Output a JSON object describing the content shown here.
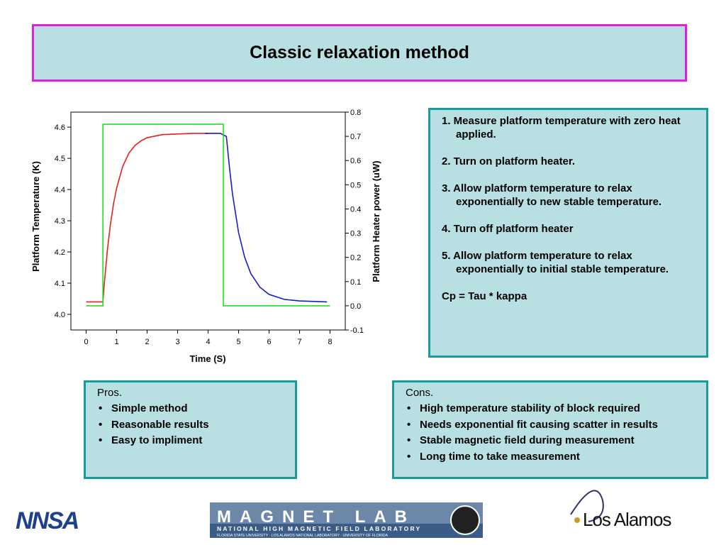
{
  "header": {
    "title": "Classic relaxation method"
  },
  "chart_data": {
    "type": "line",
    "x_label": "Time (S)",
    "y_label": "Platform Temperature (K)",
    "y2_label": "Platform Heater power (uW)",
    "xlim": [
      -0.5,
      8.5
    ],
    "xticks": [
      0,
      1,
      2,
      3,
      4,
      5,
      6,
      7,
      8
    ],
    "ylim": [
      3.95,
      4.648
    ],
    "yticks": [
      {
        "value": 4,
        "label": "4.0"
      },
      4.1,
      4.2,
      4.3,
      4.4,
      4.5,
      4.6
    ],
    "y2lim": [
      -0.1,
      0.8
    ],
    "y2ticks": [
      -0.1,
      {
        "value": 0,
        "label": "0.0"
      },
      0.1,
      0.2,
      0.3,
      0.4,
      0.5,
      0.6,
      0.7,
      0.8
    ],
    "series": [
      {
        "color": "#e02020",
        "x": [
          0,
          0.5,
          0.55,
          0.6,
          0.7,
          0.8,
          0.9,
          1.0,
          1.2,
          1.4,
          1.6,
          1.8,
          2.0,
          2.5,
          3.0,
          3.5,
          4.0
        ],
        "values": [
          4.04,
          4.04,
          4.04,
          4.103,
          4.209,
          4.291,
          4.355,
          4.405,
          4.474,
          4.516,
          4.541,
          4.556,
          4.566,
          4.576,
          4.578,
          4.58,
          4.58
        ]
      },
      {
        "color": "#1a1acc",
        "x": [
          3.9,
          4.4,
          4.6,
          4.7,
          4.8,
          5.0,
          5.2,
          5.4,
          5.7,
          6.0,
          6.5,
          7.0,
          7.9
        ],
        "values": [
          4.58,
          4.58,
          4.57,
          4.472,
          4.386,
          4.262,
          4.183,
          4.131,
          4.087,
          4.064,
          4.048,
          4.043,
          4.04
        ]
      },
      {
        "color": "#20e020",
        "axis": "y2",
        "x": [
          0,
          0.55,
          0.55,
          4.5,
          4.5,
          8
        ],
        "values": [
          0,
          0,
          0.75,
          0.75,
          0,
          0
        ]
      }
    ]
  },
  "steps": [
    "1. Measure platform temperature with zero heat applied.",
    "2. Turn on platform heater.",
    "3. Allow platform temperature to relax exponentially to new stable temperature.",
    "4. Turn off  platform heater",
    "5. Allow platform temperature to relax exponentially to initial stable temperature.",
    "Cp = Tau * kappa"
  ],
  "pros": {
    "title": "Pros.",
    "items": [
      "Simple method",
      "Reasonable results",
      "Easy to impliment"
    ]
  },
  "cons": {
    "title": "Cons.",
    "items": [
      "High temperature stability of block required",
      "Needs exponential fit causing scatter in results",
      "Stable magnetic field during measurement",
      "Long time to take measurement"
    ]
  },
  "logos": {
    "nnsa": "NNSA",
    "magnet": "MAGNET LAB",
    "magnet_sub": "NATIONAL HIGH MAGNETIC FIELD LABORATORY",
    "magnet_sub2": "FLORIDA STATE UNIVERSITY · LOS ALAMOS NATIONAL LABORATORY · UNIVERSITY OF FLORIDA",
    "lanl": "Los Alamos"
  }
}
